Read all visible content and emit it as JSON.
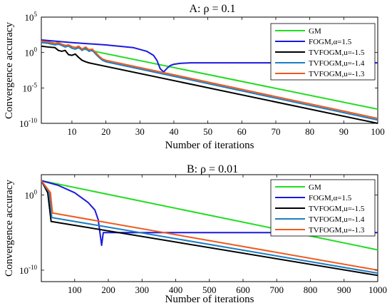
{
  "chart_data": [
    {
      "type": "line",
      "title": "A: ρ = 0.1",
      "xlabel": "Number of iterations",
      "ylabel": "Convergence accuracy",
      "xlim": [
        1,
        100
      ],
      "ylim": [
        1e-10,
        100000.0
      ],
      "yscale": "log",
      "xticks": [
        10,
        20,
        30,
        40,
        50,
        60,
        70,
        80,
        90,
        100
      ],
      "yticks": [
        {
          "value": 100000.0,
          "base": "10",
          "exp": "5"
        },
        {
          "value": 1,
          "base": "10",
          "exp": "0"
        },
        {
          "value": 1e-05,
          "base": "10",
          "exp": "-5"
        },
        {
          "value": 1e-10,
          "base": "10",
          "exp": "-10"
        }
      ],
      "legend_position": "top-right",
      "series": [
        {
          "name": "GM",
          "color": "#22dd22",
          "x": [
            1,
            100
          ],
          "y": [
            50,
            1e-08
          ]
        },
        {
          "name": "FOGM,α=1.5",
          "color": "#1a1adf",
          "x": [
            1,
            10,
            20,
            28,
            32,
            34,
            35,
            36,
            37,
            38,
            39,
            40,
            42,
            45,
            100
          ],
          "y": [
            60,
            25,
            12,
            5,
            1.5,
            0.4,
            0.08,
            0.005,
            0.0018,
            0.006,
            0.015,
            0.022,
            0.03,
            0.035,
            0.035
          ]
        },
        {
          "name": "TVFOGM,u=-1.5",
          "color": "#000000",
          "x": [
            1,
            3,
            5,
            6,
            7,
            8,
            9,
            10,
            11,
            12,
            13,
            14,
            15,
            100
          ],
          "y": [
            8,
            6,
            5,
            2,
            1.5,
            2,
            0.5,
            0.4,
            0.6,
            0.2,
            0.08,
            0.05,
            0.035,
            1e-10
          ]
        },
        {
          "name": "TVFOGM,u=-1.4",
          "color": "#1b7ec4",
          "x": [
            1,
            3,
            5,
            6,
            7,
            8,
            9,
            10,
            11,
            12,
            13,
            14,
            15,
            16,
            17,
            18,
            19,
            20,
            100
          ],
          "y": [
            25,
            20,
            12,
            15,
            10,
            6,
            8,
            4,
            3,
            5,
            2,
            4,
            1.5,
            2,
            0.6,
            0.2,
            0.08,
            0.05,
            3e-10
          ]
        },
        {
          "name": "TVFOGM,u=-1.3",
          "color": "#f05a1e",
          "x": [
            1,
            3,
            5,
            6,
            7,
            8,
            9,
            10,
            11,
            12,
            13,
            14,
            15,
            16,
            17,
            18,
            19,
            20,
            100
          ],
          "y": [
            40,
            30,
            20,
            25,
            15,
            10,
            12,
            7,
            5,
            8,
            3,
            6,
            2.5,
            3,
            1,
            0.3,
            0.12,
            0.08,
            5e-10
          ]
        }
      ]
    },
    {
      "type": "line",
      "title": "B: ρ = 0.01",
      "xlabel": "Number of iterations",
      "ylabel": "Convergence accuracy",
      "xlim": [
        1,
        1000
      ],
      "ylim": [
        3e-12,
        500
      ],
      "yscale": "log",
      "xticks": [
        100,
        200,
        300,
        400,
        500,
        600,
        700,
        800,
        900,
        1000
      ],
      "yticks": [
        {
          "value": 1,
          "base": "10",
          "exp": "0"
        },
        {
          "value": 1e-10,
          "base": "10",
          "exp": "-10"
        }
      ],
      "legend_position": "top-right",
      "series": [
        {
          "name": "GM",
          "color": "#22dd22",
          "x": [
            1,
            1000
          ],
          "y": [
            80,
            5e-08
          ]
        },
        {
          "name": "FOGM,α=1.5",
          "color": "#1a1adf",
          "x": [
            1,
            50,
            100,
            140,
            160,
            170,
            175,
            178,
            180,
            182,
            185,
            190,
            200,
            1000
          ],
          "y": [
            80,
            20,
            2,
            0.1,
            0.01,
            0.0005,
            1e-05,
            1e-06,
            2e-07,
            1e-06,
            1e-05,
            1e-05,
            1e-05,
            1e-05
          ]
        },
        {
          "name": "TVFOGM,u=-1.5",
          "color": "#000000",
          "x": [
            1,
            20,
            30,
            1000
          ],
          "y": [
            80,
            2,
            0.0003,
            2e-11
          ]
        },
        {
          "name": "TVFOGM,u=-1.4",
          "color": "#1b7ec4",
          "x": [
            1,
            25,
            32,
            1000
          ],
          "y": [
            80,
            2,
            0.001,
            4e-11
          ]
        },
        {
          "name": "TVFOGM,u=-1.3",
          "color": "#f05a1e",
          "x": [
            1,
            28,
            34,
            1000
          ],
          "y": [
            80,
            2,
            0.004,
            1e-10
          ]
        }
      ]
    }
  ]
}
